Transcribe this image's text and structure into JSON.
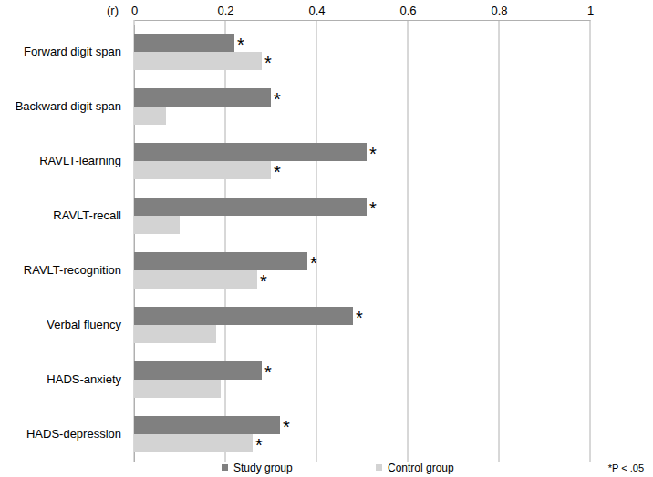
{
  "chart_data": {
    "type": "bar",
    "orientation": "horizontal",
    "xlabel": "(r)",
    "categories": [
      "Forward digit span",
      "Backward digit span",
      "RAVLT-learning",
      "RAVLT-recall",
      "RAVLT-recognition",
      "Verbal fluency",
      "HADS-anxiety",
      "HADS-depression"
    ],
    "series": [
      {
        "name": "Study group",
        "color": "#808080",
        "values": [
          0.22,
          0.3,
          0.51,
          0.51,
          0.38,
          0.48,
          0.28,
          0.32
        ],
        "annotations": [
          "*",
          "*",
          "*",
          "*",
          "*",
          "*",
          "*",
          "*"
        ]
      },
      {
        "name": "Control group",
        "color": "#d3d3d3",
        "values": [
          0.28,
          0.07,
          0.3,
          0.1,
          0.27,
          0.18,
          0.19,
          0.26
        ],
        "annotations": [
          "*",
          null,
          "*",
          null,
          "*",
          null,
          null,
          "*"
        ]
      }
    ],
    "xlim": [
      0,
      1
    ],
    "xticks": [
      0,
      0.2,
      0.4,
      0.6,
      0.8,
      1
    ],
    "grid": true,
    "legend": "bottom",
    "annotations": [
      "*P < .05"
    ]
  }
}
